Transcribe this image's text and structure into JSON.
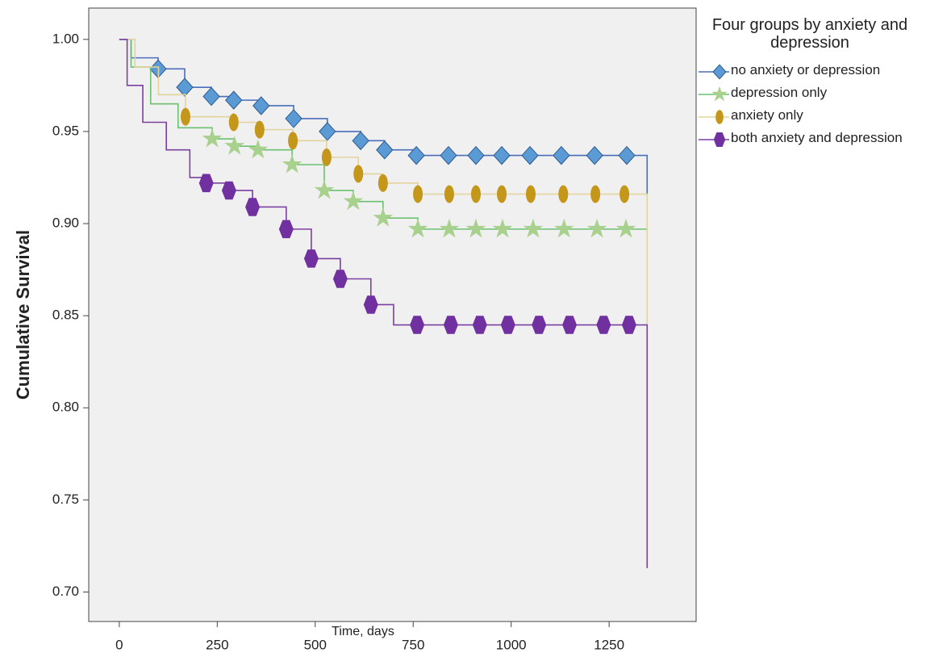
{
  "chart_data": {
    "type": "step",
    "x_label": "Time, days",
    "y_label": "Cumulative Survival",
    "legend_title": "Four groups by anxiety and depression",
    "legend": "right",
    "xlim": [
      -78,
      1472
    ],
    "xticks": [
      0,
      250,
      500,
      750,
      1000,
      1250
    ],
    "ylim": [
      0.684,
      1.017
    ],
    "yticks": [
      {
        "value": 0.7,
        "label": "0.70"
      },
      {
        "value": 0.75,
        "label": "0.75"
      },
      {
        "value": 0.8,
        "label": "0.80"
      },
      {
        "value": 0.85,
        "label": "0.85"
      },
      {
        "value": 0.9,
        "label": "0.90"
      },
      {
        "value": 0.95,
        "label": "0.95"
      },
      {
        "value": 1,
        "label": "1.00"
      }
    ],
    "series": [
      {
        "name": "no anxiety or depression",
        "color": "#4a6ebc",
        "marker": "diamond",
        "marker_color": "#5b9bd5",
        "x": [
          0,
          30,
          99,
          167,
          235,
          292,
          362,
          445,
          531,
          616,
          677,
          758,
          1347
        ],
        "values": [
          1,
          0.99,
          0.984,
          0.974,
          0.969,
          0.967,
          0.964,
          0.957,
          0.95,
          0.945,
          0.94,
          0.937,
          0.916
        ],
        "censor_x": [
          99,
          167,
          235,
          292,
          362,
          445,
          531,
          616,
          677,
          758,
          840,
          910,
          976,
          1048,
          1128,
          1213,
          1295
        ],
        "censor_values": [
          0.984,
          0.974,
          0.969,
          0.967,
          0.964,
          0.957,
          0.95,
          0.945,
          0.94,
          0.937,
          0.937,
          0.937,
          0.937,
          0.937,
          0.937,
          0.937,
          0.937
        ]
      },
      {
        "name": "depression only",
        "color": "#6cc070",
        "marker": "star",
        "marker_color": "#a9d18e",
        "x": [
          0,
          30,
          80,
          150,
          237,
          294,
          354,
          441,
          523,
          597,
          673,
          762,
          1347
        ],
        "values": [
          1,
          0.985,
          0.965,
          0.952,
          0.946,
          0.942,
          0.94,
          0.932,
          0.918,
          0.912,
          0.903,
          0.897,
          0.897
        ],
        "censor_x": [
          237,
          294,
          354,
          441,
          523,
          597,
          673,
          762,
          842,
          910,
          978,
          1056,
          1135,
          1219,
          1293
        ],
        "censor_values": [
          0.946,
          0.942,
          0.94,
          0.932,
          0.918,
          0.912,
          0.903,
          0.897,
          0.897,
          0.897,
          0.897,
          0.897,
          0.897,
          0.897,
          0.897
        ]
      },
      {
        "name": "anxiety only",
        "color": "#e2d39c",
        "marker": "ellipse",
        "marker_color": "#c4961a",
        "x": [
          0,
          40,
          100,
          169,
          292,
          358,
          443,
          529,
          610,
          673,
          762,
          1347
        ],
        "values": [
          1,
          0.985,
          0.97,
          0.958,
          0.955,
          0.951,
          0.945,
          0.936,
          0.927,
          0.922,
          0.916,
          0.845
        ],
        "censor_x": [
          169,
          292,
          358,
          443,
          529,
          610,
          673,
          762,
          842,
          910,
          976,
          1050,
          1133,
          1215,
          1289
        ],
        "censor_values": [
          0.958,
          0.955,
          0.951,
          0.945,
          0.936,
          0.927,
          0.922,
          0.916,
          0.916,
          0.916,
          0.916,
          0.916,
          0.916,
          0.916,
          0.916
        ]
      },
      {
        "name": "both anxiety and depression",
        "color": "#7b3fa0",
        "marker": "hexagon",
        "marker_color": "#7030a0",
        "x": [
          0,
          20,
          60,
          120,
          180,
          222,
          280,
          340,
          426,
          490,
          564,
          642,
          700,
          1347
        ],
        "values": [
          1,
          0.975,
          0.955,
          0.94,
          0.925,
          0.922,
          0.918,
          0.909,
          0.897,
          0.881,
          0.87,
          0.856,
          0.845,
          0.713
        ],
        "censor_x": [
          222,
          280,
          340,
          426,
          490,
          564,
          642,
          760,
          846,
          920,
          992,
          1071,
          1149,
          1236,
          1301
        ],
        "censor_values": [
          0.922,
          0.918,
          0.909,
          0.897,
          0.881,
          0.87,
          0.856,
          0.845,
          0.845,
          0.845,
          0.845,
          0.845,
          0.845,
          0.845,
          0.845
        ]
      }
    ]
  }
}
